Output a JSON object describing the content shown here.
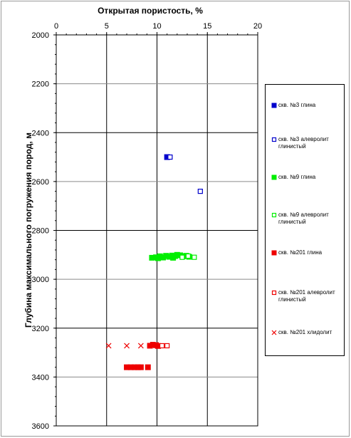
{
  "chart_data": {
    "type": "scatter",
    "title": "",
    "xlabel": "Открытая пористость, %",
    "ylabel": "Глубина максимального погружения пород, м",
    "xlim": [
      0,
      20
    ],
    "ylim": [
      2000,
      3600
    ],
    "y_inverted": true,
    "x_axis_position": "top",
    "x_ticks": [
      "0",
      "5",
      "10",
      "15",
      "20"
    ],
    "y_ticks": [
      "2000",
      "2200",
      "2400",
      "2600",
      "2800",
      "3000",
      "3200",
      "3400",
      "3600"
    ],
    "grid": true,
    "legend_position": "right",
    "series": [
      {
        "name": "скв. №3 глина",
        "color": "#0000cc",
        "marker": "square-filled",
        "points": [
          [
            11.0,
            2500
          ]
        ]
      },
      {
        "name": "скв. №3 алевролит глинистый",
        "color": "#0000cc",
        "marker": "square-open",
        "points": [
          [
            11.3,
            2500
          ],
          [
            14.3,
            2640
          ]
        ]
      },
      {
        "name": "скв. №9 глина",
        "color": "#00ee00",
        "marker": "square-filled",
        "points": [
          [
            9.5,
            2912
          ],
          [
            9.9,
            2910
          ],
          [
            10.3,
            2906
          ],
          [
            10.6,
            2911
          ],
          [
            10.9,
            2904
          ],
          [
            11.2,
            2908
          ],
          [
            11.5,
            2903
          ],
          [
            11.8,
            2905
          ],
          [
            12.0,
            2900
          ],
          [
            12.3,
            2902
          ],
          [
            12.6,
            2906
          ],
          [
            12.9,
            2904
          ],
          [
            13.2,
            2908
          ],
          [
            10.1,
            2914
          ],
          [
            11.6,
            2912
          ]
        ]
      },
      {
        "name": "скв. №9 алевролит глинистый",
        "color": "#00ee00",
        "marker": "square-open",
        "points": [
          [
            12.5,
            2910
          ],
          [
            13.1,
            2905
          ],
          [
            13.7,
            2910
          ]
        ]
      },
      {
        "name": "скв. №201 глина",
        "color": "#ee0000",
        "marker": "square-filled",
        "points": [
          [
            9.3,
            3272
          ],
          [
            9.6,
            3268
          ],
          [
            9.9,
            3270
          ],
          [
            10.1,
            3273
          ],
          [
            7.0,
            3360
          ],
          [
            7.4,
            3360
          ],
          [
            7.8,
            3360
          ],
          [
            8.1,
            3360
          ],
          [
            8.4,
            3360
          ],
          [
            9.1,
            3360
          ]
        ]
      },
      {
        "name": "скв. №201 алевролит глинистый",
        "color": "#ee0000",
        "marker": "square-open",
        "points": [
          [
            10.5,
            3272
          ],
          [
            11.0,
            3272
          ]
        ]
      },
      {
        "name": "скв. №201 хлидолит",
        "color": "#ee0000",
        "marker": "x",
        "points": [
          [
            5.2,
            3272
          ],
          [
            7.0,
            3272
          ],
          [
            8.4,
            3272
          ],
          [
            9.9,
            3268
          ]
        ]
      }
    ]
  }
}
